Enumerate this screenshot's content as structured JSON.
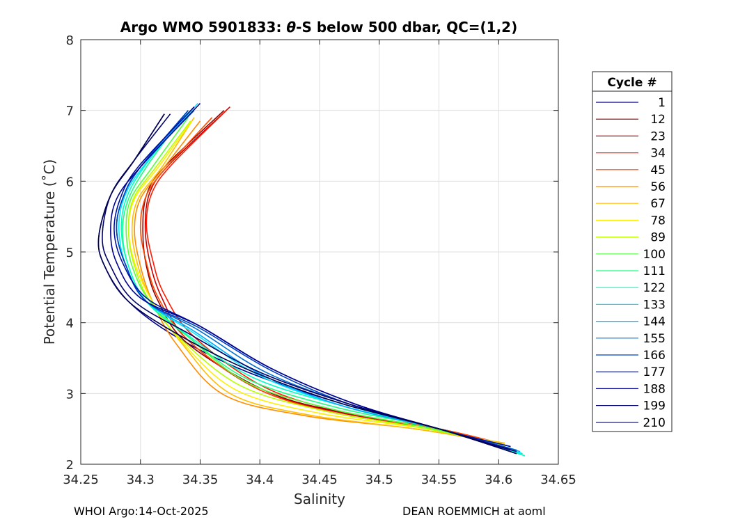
{
  "chart_data": {
    "type": "line",
    "title_prefix": "Argo WMO 5901833: ",
    "title_theta": "θ",
    "title_suffix": "-S below 500 dbar,  QC=(1,2)",
    "xlabel": "Salinity",
    "ylabel": "Potential Temperature (˚C)",
    "xlim": [
      34.25,
      34.65
    ],
    "ylim": [
      2,
      8
    ],
    "xticks": [
      34.25,
      34.3,
      34.35,
      34.4,
      34.45,
      34.5,
      34.55,
      34.6,
      34.65
    ],
    "xtick_labels": [
      "34.25",
      "34.3",
      "34.35",
      "34.4",
      "34.45",
      "34.5",
      "34.55",
      "34.6",
      "34.65"
    ],
    "yticks": [
      2,
      3,
      4,
      5,
      6,
      7,
      8
    ],
    "ytick_labels": [
      "2",
      "3",
      "4",
      "5",
      "6",
      "7",
      "8"
    ],
    "grid": true,
    "legend_title": "Cycle #",
    "legend_position": "right-outside",
    "legend": [
      {
        "label": "1",
        "color": "#00008f"
      },
      {
        "label": "12",
        "color": "#8f0000"
      },
      {
        "label": "23",
        "color": "#c40000"
      },
      {
        "label": "34",
        "color": "#ff1a00"
      },
      {
        "label": "45",
        "color": "#ff4a00"
      },
      {
        "label": "56",
        "color": "#ff8c00"
      },
      {
        "label": "67",
        "color": "#ffbf00"
      },
      {
        "label": "78",
        "color": "#ffef00"
      },
      {
        "label": "89",
        "color": "#b8ff00"
      },
      {
        "label": "100",
        "color": "#55ff40"
      },
      {
        "label": "111",
        "color": "#20ff80"
      },
      {
        "label": "122",
        "color": "#00ffc0"
      },
      {
        "label": "133",
        "color": "#00e8ff"
      },
      {
        "label": "144",
        "color": "#00a8ff"
      },
      {
        "label": "155",
        "color": "#0070d0"
      },
      {
        "label": "166",
        "color": "#0040c0"
      },
      {
        "label": "177",
        "color": "#0010a0"
      },
      {
        "label": "188",
        "color": "#000090"
      },
      {
        "label": "199",
        "color": "#00006a"
      },
      {
        "label": "210",
        "color": "#000050"
      }
    ],
    "series": [
      {
        "name": "1",
        "color": "#00008f",
        "salinity": [
          34.615,
          34.55,
          34.47,
          34.39,
          34.33,
          34.29,
          34.27,
          34.265,
          34.275,
          34.295,
          34.32
        ],
        "theta": [
          2.15,
          2.5,
          2.85,
          3.3,
          3.8,
          4.3,
          4.8,
          5.2,
          5.8,
          6.3,
          6.95
        ]
      },
      {
        "name": "12",
        "color": "#8f0000",
        "salinity": [
          34.61,
          34.55,
          34.48,
          34.41,
          34.34,
          34.315,
          34.305,
          34.302,
          34.305,
          34.32,
          34.37
        ],
        "theta": [
          2.25,
          2.5,
          2.7,
          3.0,
          3.7,
          4.3,
          4.8,
          5.3,
          5.8,
          6.2,
          7.0
        ]
      },
      {
        "name": "23",
        "color": "#c40000",
        "salinity": [
          34.605,
          34.55,
          34.47,
          34.4,
          34.34,
          34.318,
          34.308,
          34.304,
          34.308,
          34.325,
          34.375
        ],
        "theta": [
          2.28,
          2.5,
          2.72,
          3.05,
          3.75,
          4.35,
          4.85,
          5.35,
          5.85,
          6.25,
          7.05
        ]
      },
      {
        "name": "34",
        "color": "#ff1a00",
        "salinity": [
          34.6,
          34.55,
          34.475,
          34.405,
          34.345,
          34.32,
          34.31,
          34.305,
          34.31,
          34.327,
          34.372
        ],
        "theta": [
          2.3,
          2.5,
          2.72,
          3.08,
          3.8,
          4.4,
          4.9,
          5.4,
          5.85,
          6.25,
          7.0
        ]
      },
      {
        "name": "45",
        "color": "#ff4a00",
        "salinity": [
          34.6,
          34.55,
          34.47,
          34.4,
          34.34,
          34.315,
          34.305,
          34.3,
          34.305,
          34.322,
          34.36
        ],
        "theta": [
          2.3,
          2.5,
          2.7,
          3.05,
          3.75,
          4.35,
          4.85,
          5.35,
          5.8,
          6.2,
          6.9
        ]
      },
      {
        "name": "56",
        "color": "#ff8c00",
        "salinity": [
          34.6,
          34.53,
          34.44,
          34.37,
          34.33,
          34.31,
          34.3,
          34.295,
          34.3,
          34.32,
          34.35
        ],
        "theta": [
          2.3,
          2.5,
          2.68,
          2.98,
          3.7,
          4.3,
          4.8,
          5.3,
          5.75,
          6.2,
          6.85
        ]
      },
      {
        "name": "67",
        "color": "#ffbf00",
        "salinity": [
          34.605,
          34.53,
          34.44,
          34.375,
          34.335,
          34.31,
          34.298,
          34.293,
          34.298,
          34.318,
          34.345
        ],
        "theta": [
          2.3,
          2.5,
          2.7,
          3.0,
          3.7,
          4.3,
          4.8,
          5.3,
          5.75,
          6.2,
          6.9
        ]
      },
      {
        "name": "78",
        "color": "#ffef00",
        "salinity": [
          34.605,
          34.54,
          34.45,
          34.38,
          34.335,
          34.31,
          34.296,
          34.29,
          34.295,
          34.315,
          34.343
        ],
        "theta": [
          2.28,
          2.5,
          2.72,
          3.05,
          3.72,
          4.3,
          4.8,
          5.3,
          5.75,
          6.2,
          6.85
        ]
      },
      {
        "name": "89",
        "color": "#b8ff00",
        "salinity": [
          34.61,
          34.54,
          34.455,
          34.385,
          34.335,
          34.308,
          34.295,
          34.29,
          34.294,
          34.313,
          34.342
        ],
        "theta": [
          2.25,
          2.5,
          2.75,
          3.1,
          3.75,
          4.3,
          4.8,
          5.3,
          5.75,
          6.2,
          6.85
        ]
      },
      {
        "name": "100",
        "color": "#55ff40",
        "salinity": [
          34.615,
          34.545,
          34.46,
          34.39,
          34.34,
          34.308,
          34.293,
          34.288,
          34.292,
          34.31,
          34.34
        ],
        "theta": [
          2.2,
          2.5,
          2.78,
          3.15,
          3.8,
          4.3,
          4.8,
          5.3,
          5.75,
          6.2,
          6.9
        ]
      },
      {
        "name": "111",
        "color": "#20ff80",
        "salinity": [
          34.62,
          34.55,
          34.465,
          34.39,
          34.34,
          34.305,
          34.29,
          34.285,
          34.29,
          34.305,
          34.335
        ],
        "theta": [
          2.15,
          2.5,
          2.8,
          3.2,
          3.8,
          4.3,
          4.8,
          5.3,
          5.75,
          6.2,
          6.9
        ]
      },
      {
        "name": "122",
        "color": "#00ffc0",
        "salinity": [
          34.622,
          34.55,
          34.47,
          34.395,
          34.34,
          34.305,
          34.29,
          34.284,
          34.288,
          34.303,
          34.34
        ],
        "theta": [
          2.12,
          2.5,
          2.82,
          3.22,
          3.82,
          4.3,
          4.8,
          5.3,
          5.75,
          6.2,
          7.0
        ]
      },
      {
        "name": "133",
        "color": "#00e8ff",
        "salinity": [
          34.62,
          34.55,
          34.47,
          34.4,
          34.345,
          34.305,
          34.288,
          34.282,
          34.286,
          34.302,
          34.348
        ],
        "theta": [
          2.15,
          2.5,
          2.82,
          3.25,
          3.85,
          4.3,
          4.8,
          5.3,
          5.75,
          6.2,
          7.1
        ]
      },
      {
        "name": "144",
        "color": "#00a8ff",
        "salinity": [
          34.618,
          34.55,
          34.47,
          34.4,
          34.345,
          34.305,
          34.288,
          34.28,
          34.285,
          34.3,
          34.345
        ],
        "theta": [
          2.18,
          2.5,
          2.82,
          3.28,
          3.88,
          4.3,
          4.8,
          5.3,
          5.75,
          6.2,
          7.05
        ]
      },
      {
        "name": "155",
        "color": "#0070d0",
        "salinity": [
          34.615,
          34.55,
          34.475,
          34.405,
          34.348,
          34.305,
          34.288,
          34.28,
          34.285,
          34.3,
          34.345
        ],
        "theta": [
          2.2,
          2.5,
          2.85,
          3.3,
          3.9,
          4.3,
          4.8,
          5.3,
          5.75,
          6.2,
          7.0
        ]
      },
      {
        "name": "166",
        "color": "#0040c0",
        "salinity": [
          34.61,
          34.55,
          34.475,
          34.41,
          34.35,
          34.305,
          34.288,
          34.28,
          34.285,
          34.3,
          34.34
        ],
        "theta": [
          2.22,
          2.5,
          2.85,
          3.32,
          3.92,
          4.3,
          4.8,
          5.3,
          5.75,
          6.2,
          7.0
        ]
      },
      {
        "name": "177",
        "color": "#0010a0",
        "salinity": [
          34.61,
          34.55,
          34.48,
          34.41,
          34.35,
          34.305,
          34.285,
          34.278,
          34.283,
          34.298,
          34.345
        ],
        "theta": [
          2.25,
          2.5,
          2.85,
          3.35,
          3.95,
          4.35,
          4.85,
          5.3,
          5.75,
          6.2,
          7.05
        ]
      },
      {
        "name": "188",
        "color": "#000090",
        "salinity": [
          34.61,
          34.55,
          34.48,
          34.41,
          34.35,
          34.3,
          34.28,
          34.275,
          34.28,
          34.3,
          34.35
        ],
        "theta": [
          2.2,
          2.5,
          2.85,
          3.35,
          3.95,
          4.35,
          4.85,
          5.3,
          5.75,
          6.2,
          7.1
        ]
      },
      {
        "name": "199",
        "color": "#00006a",
        "salinity": [
          34.615,
          34.55,
          34.475,
          34.4,
          34.34,
          34.295,
          34.275,
          34.268,
          34.275,
          34.295,
          34.325
        ],
        "theta": [
          2.18,
          2.5,
          2.85,
          3.3,
          3.85,
          4.3,
          4.8,
          5.2,
          5.8,
          6.3,
          6.95
        ]
      },
      {
        "name": "210",
        "color": "#000050",
        "salinity": [
          34.615,
          34.55,
          34.47,
          34.395,
          34.335,
          34.29,
          34.27,
          34.265,
          34.275,
          34.295,
          34.32
        ],
        "theta": [
          2.15,
          2.5,
          2.85,
          3.3,
          3.8,
          4.3,
          4.8,
          5.2,
          5.8,
          6.3,
          6.95
        ]
      }
    ]
  },
  "footer": {
    "left": "WHOI Argo:14-Oct-2025",
    "right": "DEAN ROEMMICH at aoml"
  }
}
